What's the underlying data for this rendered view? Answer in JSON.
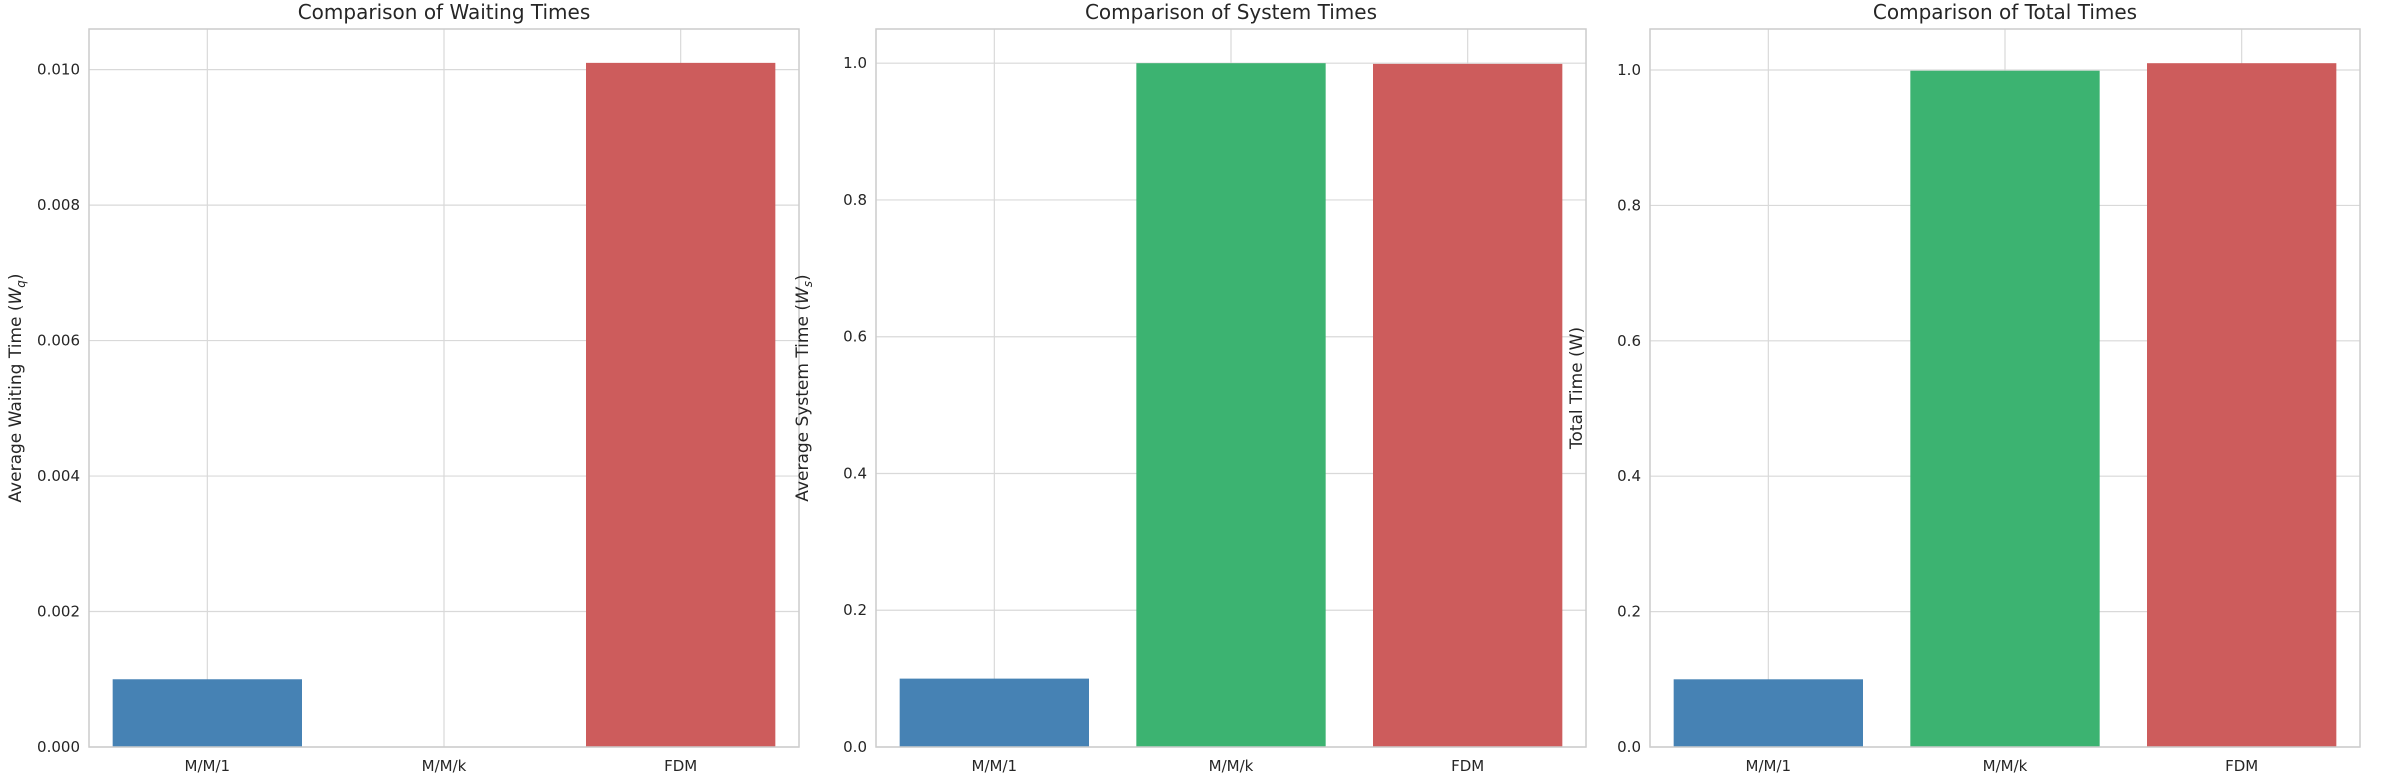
{
  "colors": {
    "background": "#ffffff",
    "grid": "#d9d9d9",
    "spine": "#cccccc",
    "text": "#262626",
    "bar_colors": [
      "#4682b4",
      "#3cb371",
      "#cd5c5c"
    ]
  },
  "chart_data": [
    {
      "type": "bar",
      "title": "Comparison of Waiting Times",
      "ylabel_main": "Average Waiting Time (",
      "ylabel_var": "W",
      "ylabel_sub": "q",
      "ylabel_tail": ")",
      "xlabel": "",
      "categories": [
        "M/M/1",
        "M/M/k",
        "FDM"
      ],
      "values": [
        0.001,
        0.0,
        0.0101
      ],
      "ylim": [
        0,
        0.0106
      ],
      "yticks": [
        0.0,
        0.002,
        0.004,
        0.006,
        0.008,
        0.01
      ],
      "ytick_labels": [
        "0.000",
        "0.002",
        "0.004",
        "0.006",
        "0.008",
        "0.010"
      ],
      "grid": true
    },
    {
      "type": "bar",
      "title": "Comparison of System Times",
      "ylabel_main": "Average System Time (",
      "ylabel_var": "W",
      "ylabel_sub": "s",
      "ylabel_tail": ")",
      "xlabel": "",
      "categories": [
        "M/M/1",
        "M/M/k",
        "FDM"
      ],
      "values": [
        0.1,
        1.0,
        0.999
      ],
      "ylim": [
        0,
        1.05
      ],
      "yticks": [
        0.0,
        0.2,
        0.4,
        0.6,
        0.8,
        1.0
      ],
      "ytick_labels": [
        "0.0",
        "0.2",
        "0.4",
        "0.6",
        "0.8",
        "1.0"
      ],
      "grid": true
    },
    {
      "type": "bar",
      "title": "Comparison of Total Times",
      "ylabel_main": "Total Time (W)",
      "ylabel_var": "",
      "ylabel_sub": "",
      "ylabel_tail": "",
      "xlabel": "",
      "categories": [
        "M/M/1",
        "M/M/k",
        "FDM"
      ],
      "values": [
        0.1,
        0.999,
        1.0101
      ],
      "ylim": [
        0,
        1.0606
      ],
      "yticks": [
        0.0,
        0.2,
        0.4,
        0.6,
        0.8,
        1.0
      ],
      "ytick_labels": [
        "0.0",
        "0.2",
        "0.4",
        "0.6",
        "0.8",
        "1.0"
      ],
      "grid": true
    }
  ]
}
